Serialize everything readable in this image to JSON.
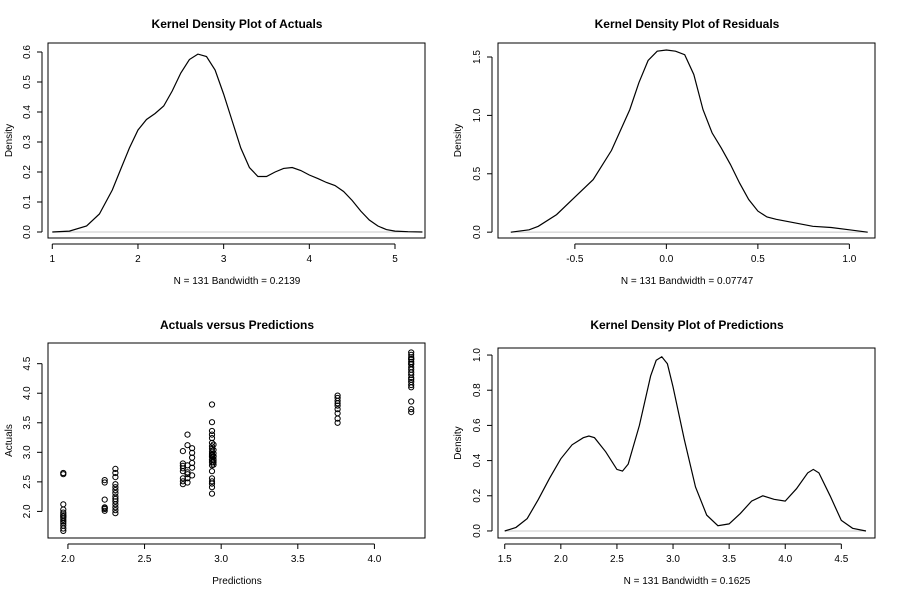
{
  "chart_data": [
    {
      "type": "line",
      "title": "Kernel Density Plot of Actuals",
      "xlabel": "N = 131   Bandwidth = 0.2139",
      "ylabel": "Density",
      "xlim": [
        0.95,
        5.35
      ],
      "ylim": [
        -0.02,
        0.63
      ],
      "xticks": [
        1,
        2,
        3,
        4,
        5
      ],
      "yticks": [
        0.0,
        0.1,
        0.2,
        0.3,
        0.4,
        0.5,
        0.6
      ],
      "xtick_labels": [
        "1",
        "2",
        "3",
        "4",
        "5"
      ],
      "ytick_labels": [
        "0.0",
        "0.1",
        "0.2",
        "0.3",
        "0.4",
        "0.5",
        "0.6"
      ],
      "zero_line": true,
      "x": [
        1.0,
        1.2,
        1.4,
        1.55,
        1.7,
        1.8,
        1.9,
        2.0,
        2.1,
        2.2,
        2.3,
        2.4,
        2.5,
        2.6,
        2.7,
        2.8,
        2.9,
        3.0,
        3.1,
        3.2,
        3.3,
        3.4,
        3.5,
        3.6,
        3.7,
        3.8,
        3.9,
        4.0,
        4.1,
        4.2,
        4.3,
        4.4,
        4.5,
        4.6,
        4.7,
        4.8,
        4.9,
        5.0,
        5.15,
        5.32
      ],
      "y": [
        0.0,
        0.003,
        0.02,
        0.06,
        0.14,
        0.21,
        0.28,
        0.34,
        0.375,
        0.395,
        0.42,
        0.47,
        0.53,
        0.575,
        0.593,
        0.585,
        0.54,
        0.46,
        0.37,
        0.28,
        0.215,
        0.185,
        0.185,
        0.2,
        0.212,
        0.215,
        0.205,
        0.19,
        0.178,
        0.165,
        0.155,
        0.135,
        0.105,
        0.07,
        0.04,
        0.02,
        0.008,
        0.003,
        0.001,
        0.0
      ]
    },
    {
      "type": "line",
      "title": "Kernel Density Plot of Residuals",
      "xlabel": "N = 131   Bandwidth = 0.07747",
      "ylabel": "Density",
      "xlim": [
        -0.92,
        1.14
      ],
      "ylim": [
        -0.05,
        1.62
      ],
      "xticks": [
        -0.5,
        0.0,
        0.5,
        1.0
      ],
      "yticks": [
        0.0,
        0.5,
        1.0,
        1.5
      ],
      "xtick_labels": [
        "-0.5",
        "0.0",
        "0.5",
        "1.0"
      ],
      "ytick_labels": [
        "0.0",
        "0.5",
        "1.0",
        "1.5"
      ],
      "zero_line": true,
      "x": [
        -0.85,
        -0.75,
        -0.7,
        -0.6,
        -0.5,
        -0.4,
        -0.3,
        -0.2,
        -0.15,
        -0.1,
        -0.05,
        0.0,
        0.05,
        0.1,
        0.15,
        0.2,
        0.25,
        0.3,
        0.35,
        0.4,
        0.45,
        0.5,
        0.55,
        0.6,
        0.7,
        0.8,
        0.9,
        1.0,
        1.1
      ],
      "y": [
        0.0,
        0.02,
        0.05,
        0.15,
        0.3,
        0.45,
        0.7,
        1.05,
        1.28,
        1.47,
        1.55,
        1.56,
        1.55,
        1.52,
        1.35,
        1.05,
        0.85,
        0.72,
        0.58,
        0.42,
        0.28,
        0.18,
        0.13,
        0.11,
        0.08,
        0.05,
        0.04,
        0.02,
        0.0
      ]
    },
    {
      "type": "scatter",
      "title": "Actuals versus Predictions",
      "xlabel": "Predictions",
      "ylabel": "Actuals",
      "xlim": [
        1.87,
        4.33
      ],
      "ylim": [
        1.55,
        4.85
      ],
      "xticks": [
        2.0,
        2.5,
        3.0,
        3.5,
        4.0
      ],
      "yticks": [
        2.0,
        2.5,
        3.0,
        3.5,
        4.0,
        4.5
      ],
      "xtick_labels": [
        "2.0",
        "2.5",
        "3.0",
        "3.5",
        "4.0"
      ],
      "ytick_labels": [
        "2.0",
        "2.5",
        "3.0",
        "3.5",
        "4.0",
        "4.5"
      ],
      "x": [
        1.97,
        1.97,
        1.97,
        1.97,
        1.97,
        1.97,
        1.97,
        1.97,
        1.97,
        1.97,
        1.97,
        1.97,
        1.97,
        1.97,
        1.97,
        2.24,
        2.24,
        2.24,
        2.24,
        2.24,
        2.24,
        2.24,
        2.31,
        2.31,
        2.31,
        2.31,
        2.31,
        2.31,
        2.31,
        2.31,
        2.31,
        2.31,
        2.31,
        2.31,
        2.31,
        2.31,
        2.75,
        2.75,
        2.75,
        2.75,
        2.75,
        2.75,
        2.75,
        2.75,
        2.78,
        2.78,
        2.78,
        2.78,
        2.78,
        2.78,
        2.78,
        2.81,
        2.81,
        2.81,
        2.81,
        2.81,
        2.81,
        2.94,
        2.94,
        2.94,
        2.94,
        2.94,
        2.94,
        2.94,
        2.94,
        2.94,
        2.94,
        2.94,
        2.94,
        2.94,
        2.94,
        2.94,
        2.94,
        2.94,
        2.94,
        2.94,
        2.94,
        2.94,
        2.95,
        2.95,
        2.95,
        2.95,
        2.95,
        2.95,
        2.95,
        2.95,
        2.95,
        3.76,
        3.76,
        3.76,
        3.76,
        3.76,
        3.76,
        3.76,
        3.76,
        3.76,
        4.24,
        4.24,
        4.24,
        4.24,
        4.24,
        4.24,
        4.24,
        4.24,
        4.24,
        4.24,
        4.24,
        4.24,
        4.24,
        4.24,
        4.24,
        4.24,
        4.24,
        4.24,
        4.24,
        4.24
      ],
      "y": [
        2.65,
        2.63,
        2.12,
        2.03,
        1.98,
        1.95,
        1.92,
        1.89,
        1.86,
        1.83,
        1.8,
        1.76,
        1.71,
        1.67,
        1.92,
        2.53,
        2.49,
        2.2,
        2.07,
        2.04,
        2.01,
        2.06,
        2.72,
        2.65,
        2.58,
        2.46,
        2.41,
        2.36,
        2.31,
        2.25,
        2.21,
        2.17,
        2.12,
        2.07,
        2.02,
        1.97,
        3.02,
        2.81,
        2.77,
        2.73,
        2.68,
        2.56,
        2.51,
        2.46,
        3.3,
        3.12,
        2.78,
        2.66,
        2.63,
        2.56,
        2.49,
        3.07,
        2.99,
        2.91,
        2.82,
        2.74,
        2.61,
        3.81,
        3.51,
        3.36,
        3.3,
        3.24,
        3.16,
        3.1,
        3.06,
        3.01,
        2.97,
        2.92,
        2.87,
        2.83,
        2.51,
        2.47,
        2.41,
        2.3,
        2.56,
        2.68,
        2.78,
        2.95,
        3.13,
        3.04,
        2.98,
        2.93,
        2.88,
        2.83,
        2.79,
        2.86,
        2.93,
        3.96,
        3.92,
        3.87,
        3.83,
        3.79,
        3.73,
        3.66,
        3.57,
        3.5,
        4.69,
        4.65,
        4.61,
        4.57,
        4.53,
        4.49,
        4.44,
        4.4,
        4.35,
        4.31,
        4.26,
        4.23,
        4.19,
        4.14,
        4.1,
        3.86,
        3.73,
        3.68,
        4.58,
        4.5
      ]
    },
    {
      "type": "line",
      "title": "Kernel Density Plot of Predictions",
      "xlabel": "N = 131   Bandwidth = 0.1625",
      "ylabel": "Density",
      "xlim": [
        1.44,
        4.8
      ],
      "ylim": [
        -0.04,
        1.04
      ],
      "xticks": [
        1.5,
        2.0,
        2.5,
        3.0,
        3.5,
        4.0,
        4.5
      ],
      "yticks": [
        0.0,
        0.2,
        0.4,
        0.6,
        0.8,
        1.0
      ],
      "xtick_labels": [
        "1.5",
        "2.0",
        "2.5",
        "3.0",
        "3.5",
        "4.0",
        "4.5"
      ],
      "ytick_labels": [
        "0.0",
        "0.2",
        "0.4",
        "0.6",
        "0.8",
        "1.0"
      ],
      "zero_line": true,
      "x": [
        1.5,
        1.6,
        1.7,
        1.8,
        1.9,
        2.0,
        2.1,
        2.2,
        2.25,
        2.3,
        2.4,
        2.5,
        2.55,
        2.6,
        2.7,
        2.8,
        2.85,
        2.9,
        2.95,
        3.0,
        3.1,
        3.2,
        3.3,
        3.4,
        3.5,
        3.6,
        3.7,
        3.8,
        3.9,
        4.0,
        4.1,
        4.2,
        4.25,
        4.3,
        4.4,
        4.5,
        4.6,
        4.72
      ],
      "y": [
        0.0,
        0.02,
        0.07,
        0.18,
        0.3,
        0.41,
        0.49,
        0.53,
        0.54,
        0.53,
        0.45,
        0.35,
        0.34,
        0.38,
        0.6,
        0.88,
        0.97,
        0.99,
        0.95,
        0.82,
        0.52,
        0.25,
        0.09,
        0.03,
        0.04,
        0.1,
        0.17,
        0.2,
        0.18,
        0.17,
        0.24,
        0.33,
        0.35,
        0.33,
        0.2,
        0.06,
        0.015,
        0.0
      ]
    }
  ]
}
